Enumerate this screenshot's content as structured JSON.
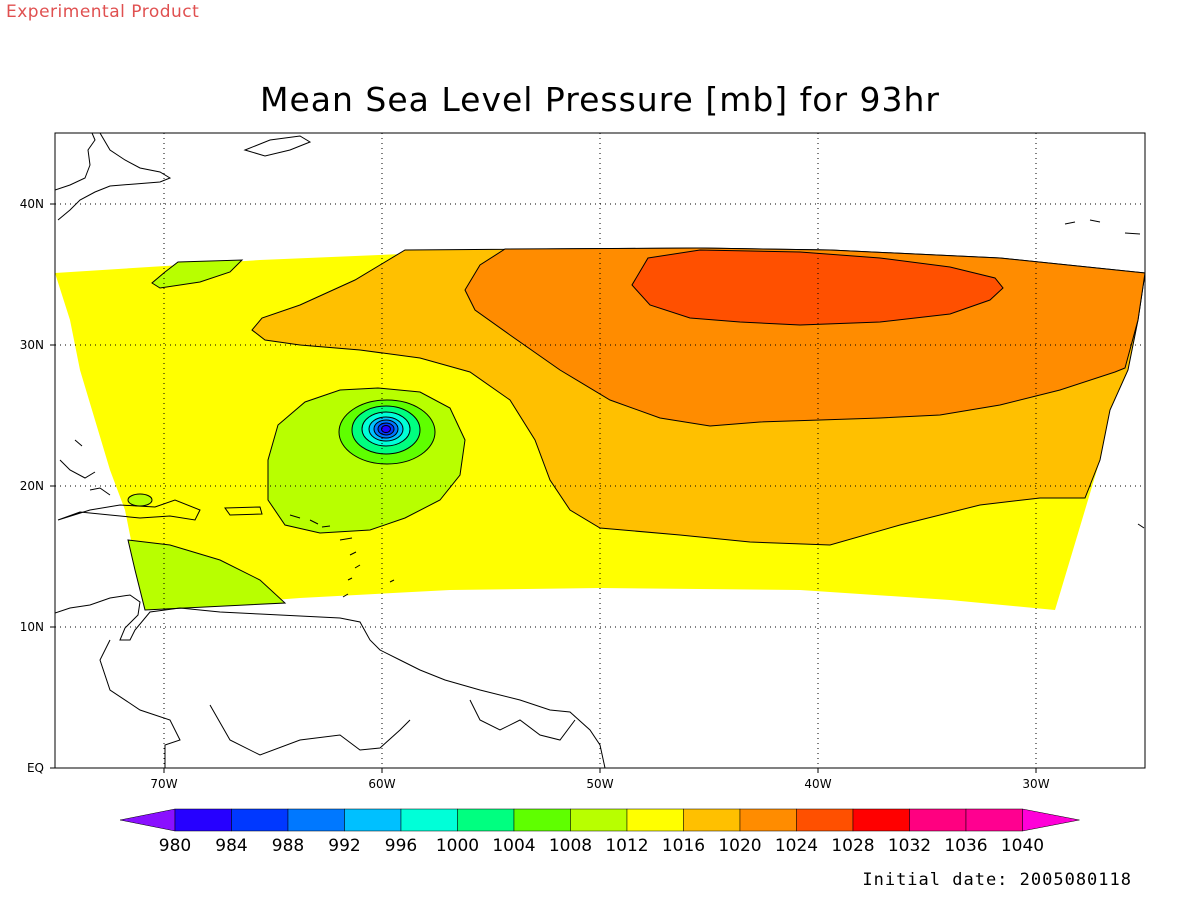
{
  "header": {
    "experimental_label": "Experimental Product",
    "title": "Mean Sea Level Pressure [mb] for 93hr"
  },
  "footer": {
    "initial_date": "Initial date: 2005080118"
  },
  "map": {
    "lat_ticks": [
      "40N",
      "30N",
      "20N",
      "10N",
      "EQ"
    ],
    "lon_ticks": [
      "70W",
      "60W",
      "50W",
      "40W",
      "30W"
    ],
    "lon_range": [
      -75,
      -25
    ],
    "lat_range": [
      0,
      45
    ],
    "features": {
      "low_center": {
        "lon": -60.3,
        "lat": 24.0,
        "min_pressure_band": "980-984"
      },
      "high_center": {
        "lon": -41,
        "lat": 33.5,
        "pressure_band": "1024-1028"
      }
    }
  },
  "colorbar": {
    "levels": [
      "980",
      "984",
      "988",
      "992",
      "996",
      "1000",
      "1004",
      "1008",
      "1012",
      "1016",
      "1020",
      "1024",
      "1028",
      "1032",
      "1036",
      "1040"
    ],
    "colors": [
      "#8a10ff",
      "#2600ff",
      "#0038ff",
      "#0078ff",
      "#00c0ff",
      "#00ffd8",
      "#00ff80",
      "#5fff00",
      "#b8ff00",
      "#ffff00",
      "#ffc000",
      "#ff8c00",
      "#ff5000",
      "#ff0000",
      "#ff0080",
      "#ff0090",
      "#ff00d8"
    ]
  }
}
